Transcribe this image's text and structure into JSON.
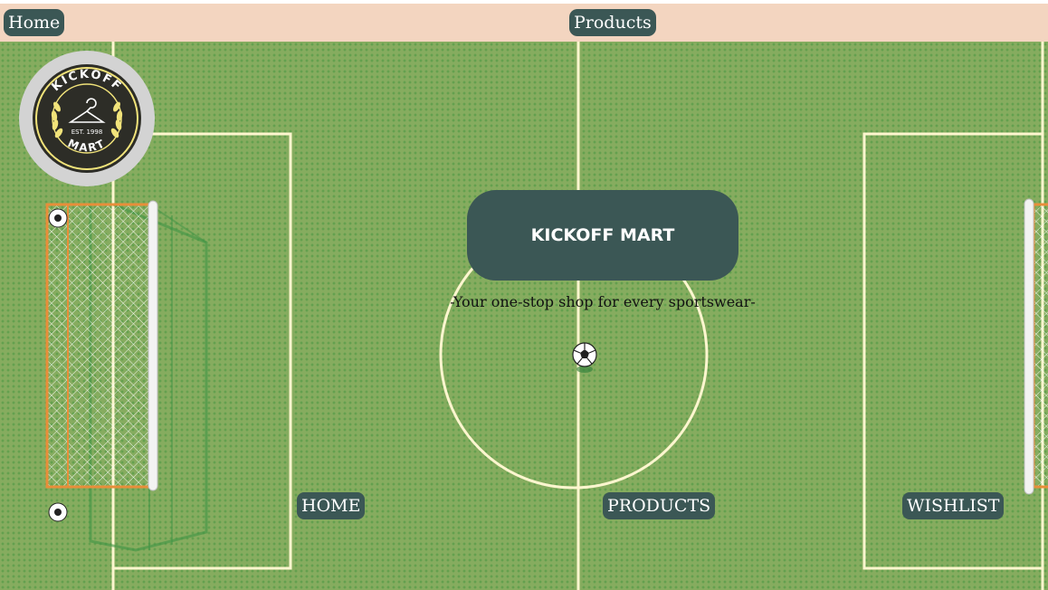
{
  "topbar": {
    "home_label": "Home",
    "products_label": "Products"
  },
  "logo": {
    "top_text": "KICKOFF",
    "bottom_text": "MART",
    "est_text": "EST. 1998"
  },
  "hero": {
    "title": "KICKOFF MART",
    "tagline": "-Your one-stop shop for every sportswear-"
  },
  "nav": {
    "home": "HOME",
    "products": "PRODUCTS",
    "wishlist": "WISHLIST"
  },
  "colors": {
    "topbar": "#f3d5c0",
    "pill": "#3b5755",
    "pitch": "#86ac5f",
    "pitch_lines": "#fdf6cf"
  },
  "icons": {
    "ball": "soccer-ball-icon",
    "goal": "soccer-goal-icon",
    "hanger": "hanger-icon",
    "laurel": "laurel-icon"
  }
}
